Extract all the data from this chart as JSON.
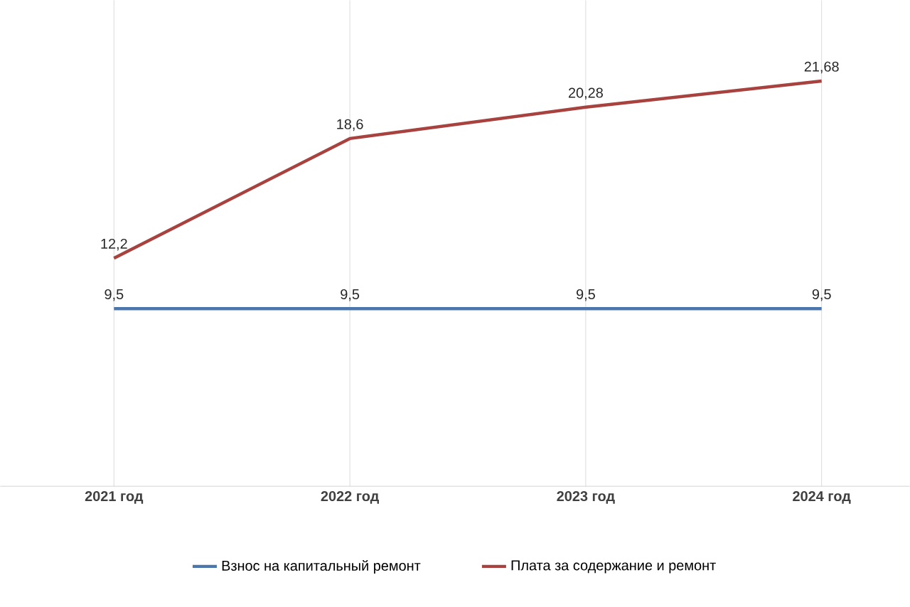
{
  "chart_data": {
    "type": "line",
    "categories": [
      "2021 год",
      "2022 год",
      "2023 год",
      "2024 год"
    ],
    "series": [
      {
        "name": "Взнос на капитальный ремонт",
        "color": "#4a76ac",
        "values": [
          9.5,
          9.5,
          9.5,
          9.5
        ],
        "value_labels": [
          "9,5",
          "9,5",
          "9,5",
          "9,5"
        ]
      },
      {
        "name": "Плата за содержание и ремонт",
        "color": "#a8423f",
        "values": [
          12.2,
          18.6,
          20.28,
          21.68
        ],
        "value_labels": [
          "12,2",
          "18,6",
          "20,28",
          "21,68"
        ]
      }
    ],
    "ylim": [
      0,
      26
    ],
    "tick_labels": "x",
    "grid": "x",
    "legend": "bottom",
    "marker": "none",
    "line_style": "solid"
  }
}
